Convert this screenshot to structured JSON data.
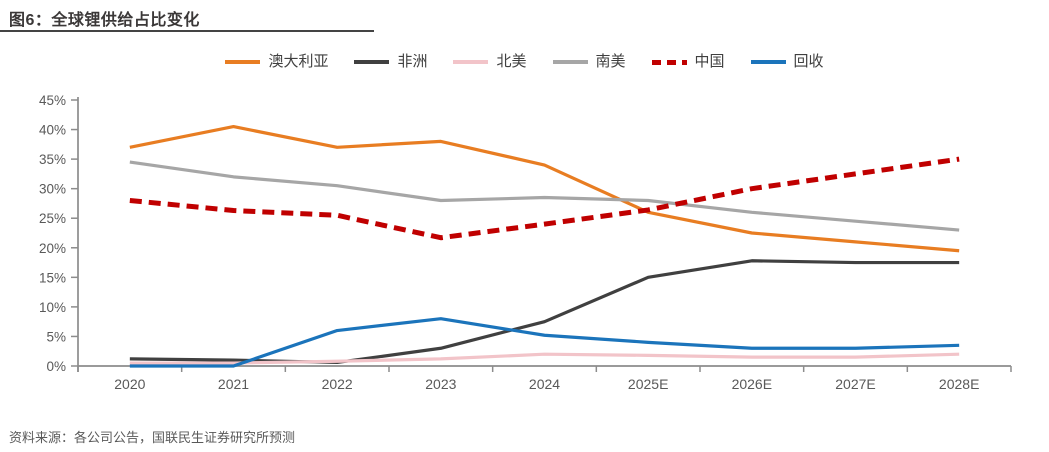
{
  "header": {
    "title": "图6：全球锂供给占比变化"
  },
  "footer": {
    "source": "资料来源：各公司公告，国联民生证券研究所预测"
  },
  "colors": {
    "title": "#3b3838",
    "axis": "#8c8c8c",
    "tick_label": "#595959",
    "background": "#ffffff"
  },
  "chart_data": {
    "type": "line",
    "title": "全球锂供给占比变化",
    "xlabel": "",
    "ylabel": "",
    "unit": "%",
    "ylim": [
      0,
      45
    ],
    "ytick_step": 5,
    "ytick_labels": [
      "0%",
      "5%",
      "10%",
      "15%",
      "20%",
      "25%",
      "30%",
      "35%",
      "40%",
      "45%"
    ],
    "grid": false,
    "legend_position": "top",
    "categories": [
      "2020",
      "2021",
      "2022",
      "2023",
      "2024",
      "2025E",
      "2026E",
      "2027E",
      "2028E"
    ],
    "series": [
      {
        "key": "australia",
        "name": "澳大利亚",
        "color": "#e87d22",
        "style": "solid",
        "values": [
          37.0,
          40.5,
          37.0,
          38.0,
          34.0,
          26.0,
          22.5,
          21.0,
          19.5
        ]
      },
      {
        "key": "africa",
        "name": "非洲",
        "color": "#404040",
        "style": "solid",
        "values": [
          1.2,
          1.0,
          0.6,
          3.0,
          7.5,
          15.0,
          17.8,
          17.5,
          17.5
        ]
      },
      {
        "key": "north-america",
        "name": "北美",
        "color": "#f2c4c9",
        "style": "solid",
        "values": [
          0.5,
          0.5,
          0.8,
          1.2,
          2.0,
          1.8,
          1.5,
          1.5,
          2.0
        ]
      },
      {
        "key": "south-america",
        "name": "南美",
        "color": "#a6a6a6",
        "style": "solid",
        "values": [
          34.5,
          32.0,
          30.5,
          28.0,
          28.5,
          28.0,
          26.0,
          24.5,
          23.0
        ]
      },
      {
        "key": "china",
        "name": "中国",
        "color": "#c00000",
        "style": "dashed",
        "values": [
          28.0,
          26.3,
          25.5,
          21.7,
          24.0,
          26.4,
          30.0,
          32.5,
          35.0
        ]
      },
      {
        "key": "recycling",
        "name": "回收",
        "color": "#1b74bb",
        "style": "solid",
        "values": [
          0.0,
          0.0,
          6.0,
          8.0,
          5.2,
          4.0,
          3.0,
          3.0,
          3.5
        ]
      }
    ]
  }
}
